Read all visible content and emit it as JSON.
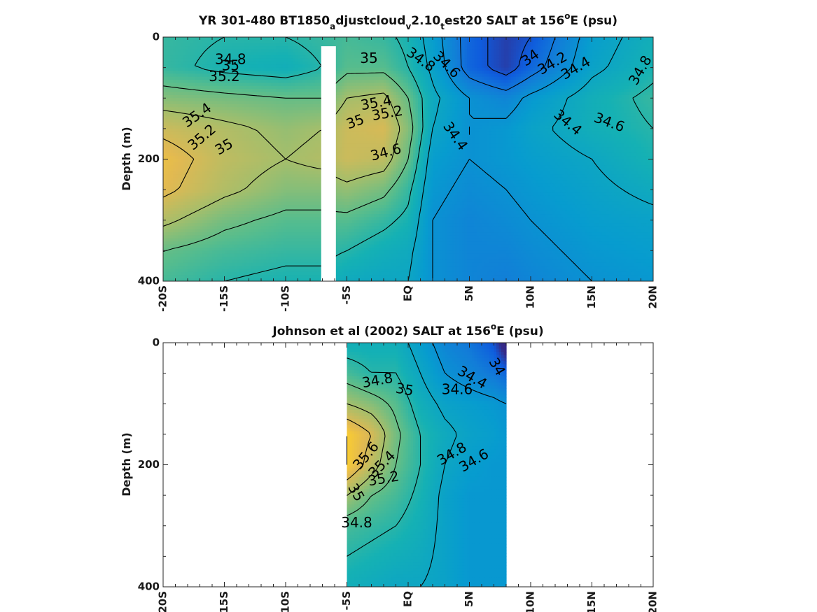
{
  "chart_data": [
    {
      "type": "heatmap",
      "title_parts": [
        "YR 301-480 BT1850",
        "a",
        "djustcloud",
        "v",
        "2.10",
        "t",
        "est20 SALT at 156",
        "o",
        "E (psu)"
      ],
      "ylabel": "Depth (m)",
      "xlabel": "",
      "x_ticks": [
        -20,
        -15,
        -10,
        -5,
        0,
        5,
        10,
        15,
        20
      ],
      "x_tick_labels": [
        "-20S",
        "-15S",
        "-10S",
        "-5S",
        "EQ",
        "5N",
        "10N",
        "15N",
        "20N"
      ],
      "y_ticks": [
        0,
        200,
        400
      ],
      "y_tick_labels": [
        "0",
        "200",
        "400"
      ],
      "xlim": [
        -20,
        20
      ],
      "ylim": [
        400,
        0
      ],
      "colormap": "parula",
      "clim": [
        33.8,
        35.8
      ],
      "contour_levels": [
        34,
        34.2,
        34.4,
        34.6,
        34.8,
        35,
        35.2,
        35.4
      ],
      "missing_band": {
        "lon_from": -7.1,
        "lon_to": -5.9,
        "depth_from": 15,
        "depth_to": 400
      },
      "salinity_grid": {
        "lon": [
          -20,
          -15,
          -10,
          -7,
          -5,
          -2,
          0,
          2,
          5,
          8,
          10,
          15,
          20
        ],
        "depth": [
          0,
          50,
          100,
          150,
          200,
          250,
          300,
          350,
          400
        ],
        "values": [
          [
            34.85,
            34.8,
            34.8,
            34.85,
            34.9,
            34.85,
            34.75,
            34.5,
            34.1,
            33.9,
            34.0,
            34.5,
            34.7
          ],
          [
            34.85,
            34.75,
            34.7,
            34.8,
            34.95,
            34.95,
            34.8,
            34.55,
            34.1,
            33.9,
            34.1,
            34.55,
            34.75
          ],
          [
            35.1,
            35.05,
            35.0,
            35.0,
            35.2,
            35.25,
            35.0,
            34.65,
            34.4,
            34.3,
            34.45,
            34.7,
            34.85
          ],
          [
            35.35,
            35.25,
            35.15,
            35.2,
            35.35,
            35.4,
            35.1,
            34.6,
            34.4,
            34.45,
            34.55,
            34.7,
            34.8
          ],
          [
            35.5,
            35.3,
            35.2,
            35.25,
            35.35,
            35.3,
            35.0,
            34.5,
            34.4,
            34.45,
            34.5,
            34.6,
            34.75
          ],
          [
            35.45,
            35.25,
            35.1,
            35.1,
            35.15,
            35.05,
            34.85,
            34.45,
            34.35,
            34.4,
            34.45,
            34.55,
            34.65
          ],
          [
            35.25,
            35.05,
            34.95,
            34.95,
            34.95,
            34.85,
            34.75,
            34.4,
            34.3,
            34.35,
            34.4,
            34.5,
            34.55
          ],
          [
            35.0,
            34.9,
            34.85,
            34.85,
            34.8,
            34.7,
            34.65,
            34.4,
            34.3,
            34.3,
            34.35,
            34.45,
            34.5
          ],
          [
            34.9,
            34.8,
            34.75,
            34.75,
            34.65,
            34.6,
            34.6,
            34.4,
            34.3,
            34.25,
            34.3,
            34.4,
            34.45
          ]
        ]
      },
      "contour_labels": [
        {
          "text": "34.8",
          "lon": -14.5,
          "depth": 38,
          "angle": 0
        },
        {
          "text": "35",
          "lon": -14.5,
          "depth": 48,
          "angle": 0
        },
        {
          "text": "35.2",
          "lon": -15.0,
          "depth": 66,
          "angle": 0
        },
        {
          "text": "35.4",
          "lon": -17.2,
          "depth": 129,
          "angle": -35
        },
        {
          "text": "35.2",
          "lon": -16.8,
          "depth": 165,
          "angle": -40
        },
        {
          "text": "35",
          "lon": -15.0,
          "depth": 181,
          "angle": -30
        },
        {
          "text": "35",
          "lon": -3.2,
          "depth": 36,
          "angle": 0
        },
        {
          "text": "35.4",
          "lon": -2.6,
          "depth": 109,
          "angle": -10
        },
        {
          "text": "35.2",
          "lon": -1.7,
          "depth": 126,
          "angle": -10
        },
        {
          "text": "35",
          "lon": -4.3,
          "depth": 140,
          "angle": -20
        },
        {
          "text": "34.6",
          "lon": -1.8,
          "depth": 190,
          "angle": -15
        },
        {
          "text": "34.8",
          "lon": 1.0,
          "depth": 38,
          "angle": 35
        },
        {
          "text": "34.6",
          "lon": 3.1,
          "depth": 46,
          "angle": 45
        },
        {
          "text": "34.4",
          "lon": 3.8,
          "depth": 163,
          "angle": 55
        },
        {
          "text": "34",
          "lon": 10.0,
          "depth": 35,
          "angle": -35
        },
        {
          "text": "34.2",
          "lon": 11.8,
          "depth": 44,
          "angle": -30
        },
        {
          "text": "34.4",
          "lon": 13.7,
          "depth": 52,
          "angle": -30
        },
        {
          "text": "34.4",
          "lon": 13.0,
          "depth": 141,
          "angle": 40
        },
        {
          "text": "34.6",
          "lon": 16.4,
          "depth": 141,
          "angle": 20
        },
        {
          "text": "34.8",
          "lon": 19.0,
          "depth": 55,
          "angle": -60
        }
      ]
    },
    {
      "type": "heatmap",
      "title_parts": [
        "Johnson et al (2002) SALT at 156",
        "o",
        "E (psu)"
      ],
      "ylabel": "Depth (m)",
      "xlabel": "",
      "x_ticks": [
        -20,
        -15,
        -10,
        -5,
        0,
        5,
        10,
        15,
        20
      ],
      "x_tick_labels": [
        "-20S",
        "-15S",
        "-10S",
        "-5S",
        "EQ",
        "5N",
        "10N",
        "15N",
        "20N"
      ],
      "y_ticks": [
        0,
        200,
        400
      ],
      "y_tick_labels": [
        "0",
        "200",
        "400"
      ],
      "xlim": [
        -20,
        20
      ],
      "ylim": [
        400,
        0
      ],
      "colormap": "parula",
      "clim": [
        33.8,
        35.8
      ],
      "data_extent": {
        "lon_from": -5,
        "lon_to": 8
      },
      "contour_levels": [
        34.4,
        34.6,
        34.8,
        35,
        35.2,
        35.4,
        35.6
      ],
      "salinity_grid": {
        "lon": [
          -5,
          -3,
          -1,
          1,
          3,
          5,
          7,
          8
        ],
        "depth": [
          0,
          50,
          100,
          150,
          200,
          250,
          300,
          350,
          400
        ],
        "values": [
          [
            34.7,
            34.7,
            34.7,
            34.5,
            34.3,
            34.2,
            34.0,
            33.6
          ],
          [
            34.9,
            34.8,
            34.8,
            34.6,
            34.4,
            34.3,
            34.2,
            34.1
          ],
          [
            35.2,
            35.1,
            34.95,
            34.7,
            34.55,
            34.5,
            34.45,
            34.4
          ],
          [
            35.6,
            35.4,
            35.05,
            34.8,
            34.65,
            34.55,
            34.5,
            34.45
          ],
          [
            35.6,
            35.3,
            35.0,
            34.8,
            34.6,
            34.5,
            34.45,
            34.45
          ],
          [
            35.2,
            35.0,
            34.9,
            34.75,
            34.55,
            34.45,
            34.45,
            34.45
          ],
          [
            34.9,
            34.85,
            34.8,
            34.7,
            34.55,
            34.45,
            34.45,
            34.45
          ],
          [
            34.8,
            34.75,
            34.7,
            34.65,
            34.55,
            34.45,
            34.45,
            34.45
          ],
          [
            34.7,
            34.65,
            34.6,
            34.6,
            34.55,
            34.45,
            34.45,
            34.45
          ]
        ]
      },
      "contour_labels": [
        {
          "text": "34.8",
          "lon": -2.5,
          "depth": 63,
          "angle": -10
        },
        {
          "text": "35",
          "lon": -0.3,
          "depth": 78,
          "angle": 10
        },
        {
          "text": "34.6",
          "lon": 4.0,
          "depth": 78,
          "angle": 0
        },
        {
          "text": "34.4",
          "lon": 5.2,
          "depth": 58,
          "angle": 30
        },
        {
          "text": "34",
          "lon": 7.2,
          "depth": 40,
          "angle": 60
        },
        {
          "text": "35.6",
          "lon": -3.4,
          "depth": 186,
          "angle": -50
        },
        {
          "text": "35.4",
          "lon": -2.1,
          "depth": 200,
          "angle": -45
        },
        {
          "text": "35.2",
          "lon": -2.0,
          "depth": 224,
          "angle": -10
        },
        {
          "text": "35",
          "lon": -4.3,
          "depth": 246,
          "angle": 60
        },
        {
          "text": "34.8",
          "lon": 3.6,
          "depth": 183,
          "angle": -30
        },
        {
          "text": "34.6",
          "lon": 5.4,
          "depth": 194,
          "angle": -30
        },
        {
          "text": "34.8",
          "lon": -4.2,
          "depth": 296,
          "angle": 0
        }
      ]
    }
  ]
}
